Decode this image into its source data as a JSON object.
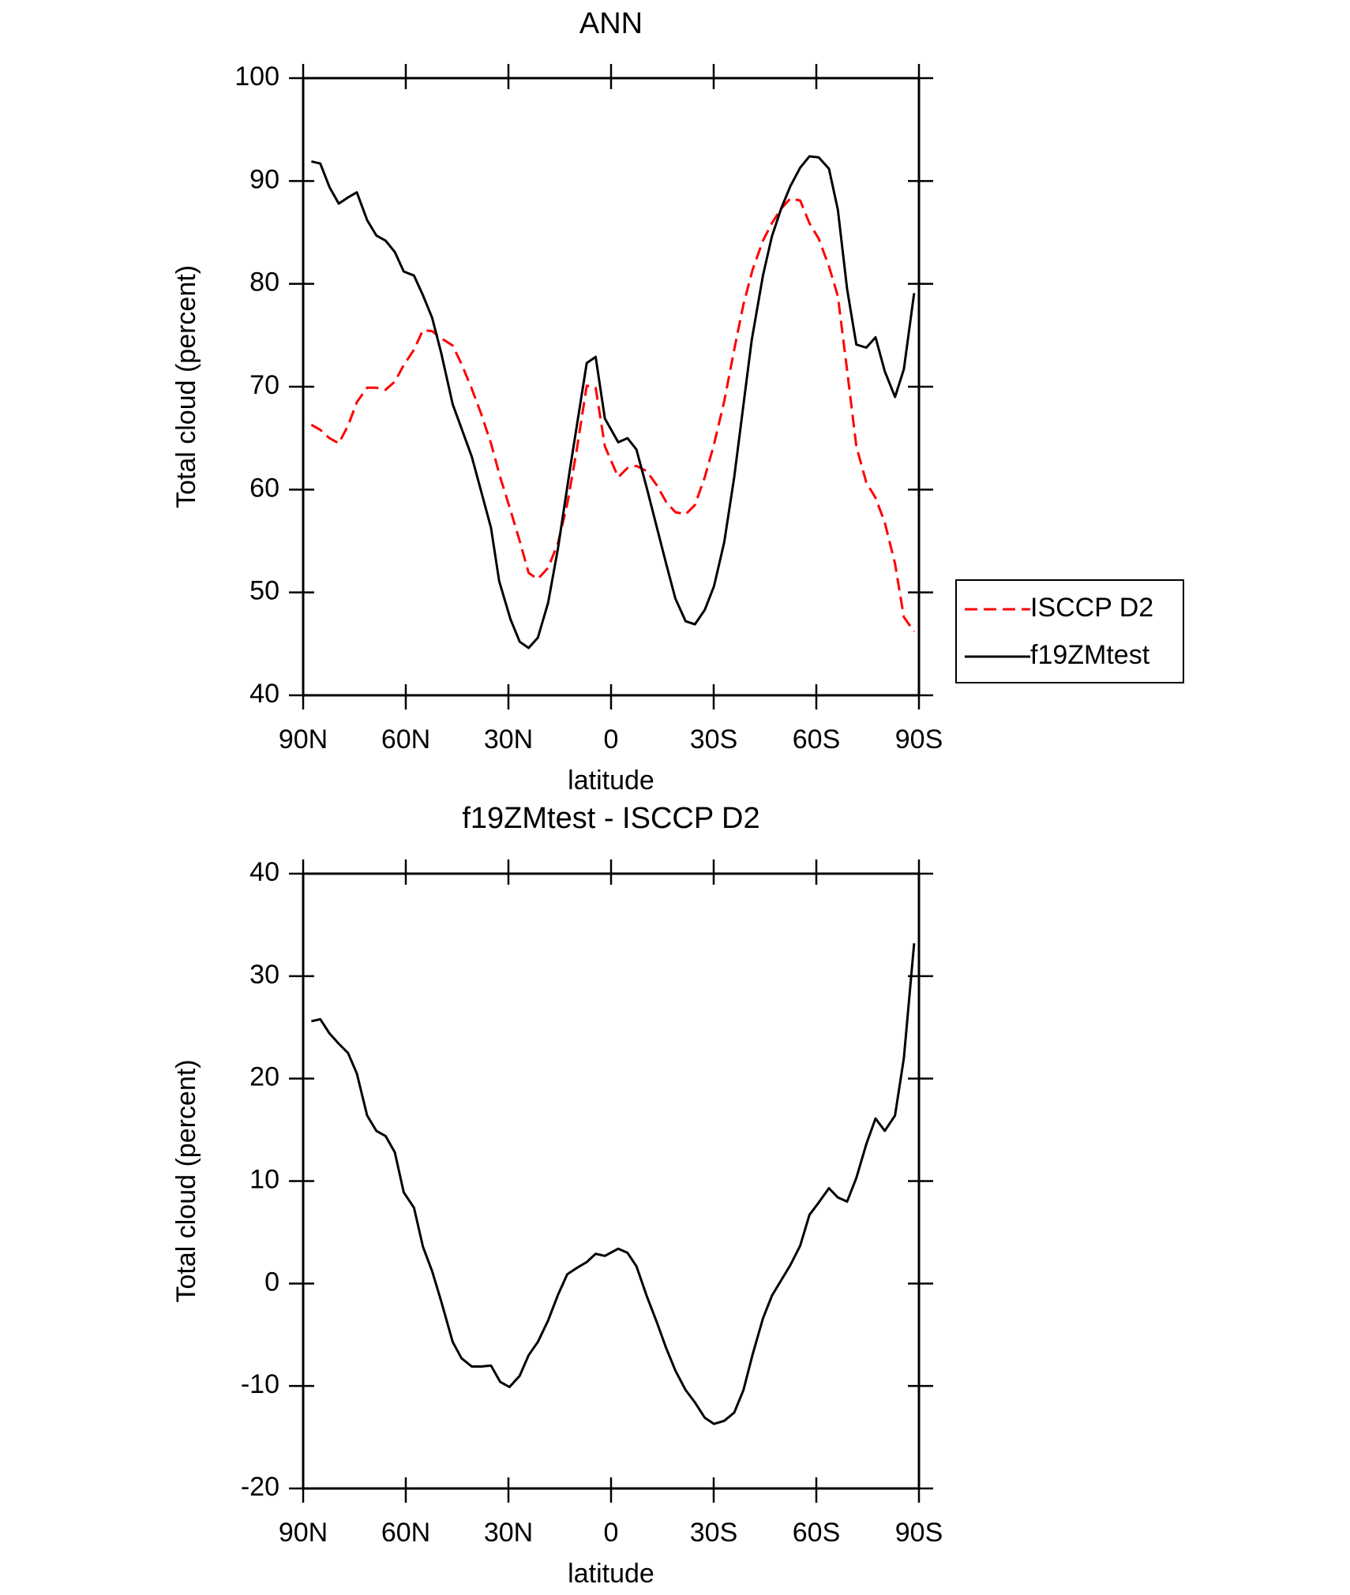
{
  "chart_data": [
    {
      "type": "line",
      "title": "ANN",
      "xlabel": "latitude",
      "ylabel": "Total cloud (percent)",
      "xlim": [
        90,
        -90
      ],
      "ylim": [
        40,
        100
      ],
      "xticks": [
        {
          "value": 90,
          "label": "90N"
        },
        {
          "value": 60,
          "label": "60N"
        },
        {
          "value": 30,
          "label": "30N"
        },
        0,
        {
          "value": -30,
          "label": "30S"
        },
        {
          "value": -60,
          "label": "60S"
        },
        {
          "value": -90,
          "label": "90S"
        }
      ],
      "yticks": [
        40,
        50,
        60,
        70,
        80,
        90,
        100
      ],
      "legend": "right",
      "series": [
        {
          "name": "ISCCP D2",
          "color": "#ff0000",
          "dash": "dashed",
          "x": [
            87.6,
            85.0,
            82.3,
            79.6,
            76.9,
            74.3,
            71.3,
            68.6,
            65.9,
            63.2,
            60.6,
            57.6,
            55.0,
            52.3,
            49.6,
            46.3,
            43.7,
            40.7,
            38.0,
            35.1,
            32.4,
            29.4,
            26.7,
            24.1,
            21.4,
            18.4,
            15.5,
            12.8,
            10.1,
            7.1,
            4.5,
            1.8,
            -2.1,
            -4.8,
            -7.4,
            -10.4,
            -13.4,
            -16.1,
            -18.8,
            -21.8,
            -24.5,
            -27.4,
            -30.1,
            -33.1,
            -36.0,
            -38.7,
            -41.4,
            -44.4,
            -47.0,
            -49.7,
            -52.4,
            -55.3,
            -58.0,
            -60.7,
            -63.7,
            -66.3,
            -69.0,
            -71.7,
            -74.6,
            -77.3,
            -80.0,
            -83.0,
            -85.6,
            -88.6
          ],
          "values": [
            66.3,
            65.8,
            65.0,
            64.5,
            66.2,
            68.5,
            69.9,
            69.9,
            69.7,
            70.5,
            72.1,
            73.6,
            75.5,
            75.4,
            74.7,
            74.0,
            72.2,
            69.8,
            67.4,
            64.5,
            61.2,
            58.0,
            55.0,
            51.9,
            51.3,
            52.4,
            54.8,
            58.6,
            63.7,
            70.1,
            69.9,
            64.2,
            61.2,
            62.1,
            62.3,
            61.8,
            60.4,
            58.8,
            57.8,
            57.6,
            58.5,
            61.2,
            64.4,
            68.6,
            73.6,
            78.0,
            81.4,
            84.2,
            85.9,
            87.3,
            88.3,
            88.1,
            85.9,
            84.4,
            81.7,
            78.8,
            71.6,
            64.2,
            60.7,
            59.2,
            56.8,
            52.8,
            47.6,
            46.2
          ]
        },
        {
          "name": "f19ZMtest",
          "color": "#000000",
          "dash": "solid",
          "x": [
            87.6,
            85.0,
            82.3,
            79.6,
            76.9,
            74.3,
            71.3,
            68.6,
            65.9,
            63.2,
            60.6,
            57.6,
            55.0,
            52.3,
            49.6,
            46.3,
            40.7,
            35.1,
            32.7,
            29.4,
            26.7,
            24.1,
            21.4,
            18.4,
            15.5,
            11.9,
            7.1,
            4.5,
            1.8,
            -2.1,
            -4.8,
            -7.4,
            -10.4,
            -13.4,
            -16.1,
            -18.8,
            -21.8,
            -24.5,
            -27.4,
            -30.1,
            -33.1,
            -36.0,
            -41.1,
            -44.4,
            -47.0,
            -49.7,
            -52.4,
            -55.3,
            -58.0,
            -60.7,
            -63.7,
            -66.3,
            -69.0,
            -71.7,
            -74.6,
            -77.3,
            -80.0,
            -83.0,
            -85.6,
            -88.6
          ],
          "values": [
            91.9,
            91.7,
            89.4,
            87.8,
            88.4,
            88.9,
            86.2,
            84.7,
            84.2,
            83.1,
            81.2,
            80.8,
            78.9,
            76.7,
            73.2,
            68.3,
            63.2,
            56.3,
            51.1,
            47.4,
            45.2,
            44.6,
            45.6,
            49.0,
            54.3,
            62.2,
            72.3,
            72.9,
            66.9,
            64.6,
            65.0,
            63.9,
            60.2,
            56.3,
            52.8,
            49.4,
            47.2,
            46.9,
            48.3,
            50.6,
            54.9,
            61.2,
            74.5,
            80.8,
            84.6,
            87.3,
            89.5,
            91.3,
            92.4,
            92.3,
            91.2,
            87.2,
            79.5,
            74.1,
            73.8,
            74.8,
            71.5,
            69.0,
            71.7,
            79.1
          ]
        }
      ]
    },
    {
      "type": "line",
      "title": "f19ZMtest - ISCCP D2",
      "xlabel": "latitude",
      "ylabel": "Total cloud (percent)",
      "xlim": [
        90,
        -90
      ],
      "ylim": [
        -20,
        40
      ],
      "xticks": [
        {
          "value": 90,
          "label": "90N"
        },
        {
          "value": 60,
          "label": "60N"
        },
        {
          "value": 30,
          "label": "30N"
        },
        0,
        {
          "value": -30,
          "label": "30S"
        },
        {
          "value": -60,
          "label": "60S"
        },
        {
          "value": -90,
          "label": "90S"
        }
      ],
      "yticks": [
        -20,
        -10,
        0,
        10,
        20,
        30,
        40
      ],
      "series": [
        {
          "color": "#000000",
          "dash": "solid",
          "x": [
            87.6,
            85.0,
            82.3,
            79.6,
            76.9,
            74.3,
            71.3,
            68.6,
            65.9,
            63.2,
            60.6,
            57.6,
            55.0,
            52.3,
            49.6,
            46.3,
            43.7,
            40.7,
            38.0,
            35.1,
            32.4,
            29.7,
            26.7,
            24.1,
            21.4,
            18.4,
            15.5,
            12.8,
            10.1,
            7.1,
            4.5,
            1.8,
            -2.1,
            -4.8,
            -7.4,
            -10.4,
            -13.4,
            -16.1,
            -18.8,
            -21.8,
            -24.5,
            -27.4,
            -30.1,
            -33.1,
            -36.0,
            -38.7,
            -41.4,
            -44.4,
            -47.0,
            -49.7,
            -52.4,
            -55.3,
            -58.0,
            -60.7,
            -63.7,
            -66.3,
            -69.0,
            -71.7,
            -74.6,
            -77.3,
            -80.0,
            -83.0,
            -85.6,
            -88.6
          ],
          "values": [
            25.6,
            25.8,
            24.4,
            23.4,
            22.5,
            20.5,
            16.4,
            14.9,
            14.4,
            12.8,
            8.9,
            7.4,
            3.6,
            1.2,
            -1.8,
            -5.7,
            -7.3,
            -8.1,
            -8.1,
            -8.0,
            -9.6,
            -10.1,
            -9.0,
            -7.0,
            -5.7,
            -3.6,
            -1.1,
            0.9,
            1.5,
            2.1,
            2.9,
            2.7,
            3.4,
            3.0,
            1.7,
            -1.2,
            -3.8,
            -6.3,
            -8.5,
            -10.4,
            -11.6,
            -13.1,
            -13.7,
            -13.4,
            -12.6,
            -10.4,
            -6.9,
            -3.4,
            -1.2,
            0.3,
            1.8,
            3.7,
            6.7,
            7.9,
            9.3,
            8.4,
            8.0,
            10.3,
            13.6,
            16.1,
            14.9,
            16.4,
            22.0,
            33.2
          ]
        }
      ]
    }
  ]
}
